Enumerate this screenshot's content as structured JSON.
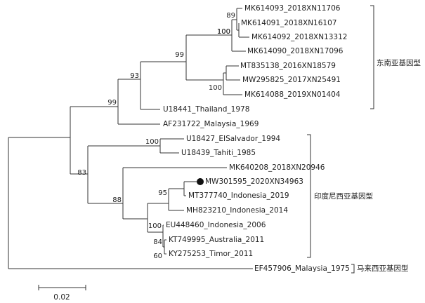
{
  "tree": {
    "leaves": [
      "MK614093_2018XN11706",
      "MK614091_2018XN16107",
      "MK614092_2018XN13312",
      "MK614090_2018XN17096",
      "MT835138_2016XN18579",
      "MW295825_2017XN25491",
      "MK614088_2019XN01404",
      "U18441_Thailand_1978",
      "AF231722_Malaysia_1969",
      "U18427_EISalvador_1994",
      "U18439_Tahiti_1985",
      "MK640208_2018XN20946",
      "MW301595_2020XN34963",
      "MT377740_Indonesia_2019",
      "MH823210_Indonesia_2014",
      "EU448460_Indonesia_2006",
      "KT749995_Australia_2011",
      "KY275253_Timor_2011",
      "EF457906_Malaysia_1975"
    ],
    "bootstrap": [
      89,
      100,
      99,
      100,
      93,
      99,
      100,
      83,
      88,
      100,
      95,
      100,
      84,
      60
    ],
    "clades": [
      "东南亚基因型",
      "印度尼西亚基因型",
      "马来西亚基因型"
    ],
    "scale_bar": {
      "label": "0.02"
    }
  }
}
